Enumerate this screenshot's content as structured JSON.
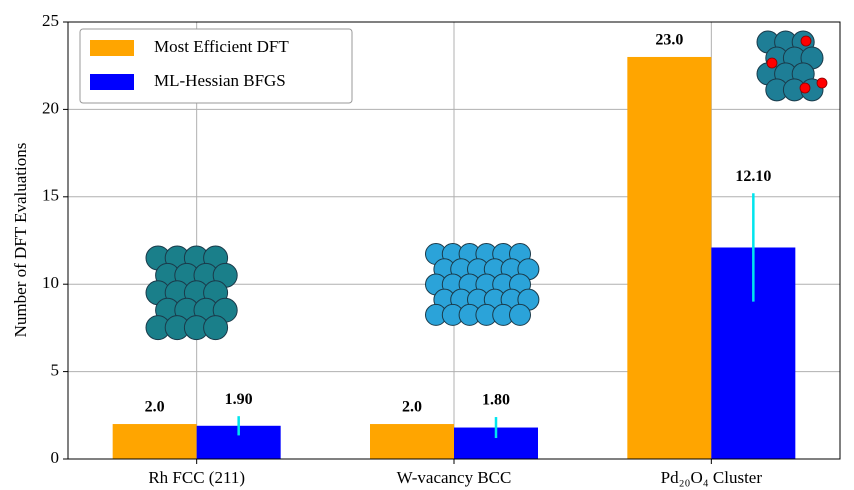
{
  "chart_data": {
    "type": "bar",
    "y_label": "Number of DFT Evaluations",
    "categories": [
      "Rh FCC (211)",
      "W-vacancy BCC",
      "Pd₂₀O₄  Cluster"
    ],
    "series": [
      {
        "name": "Most Efficient DFT",
        "color": "#ffa500",
        "values": [
          2,
          2,
          23
        ],
        "value_labels": [
          "2.0",
          "2.0",
          "23.0"
        ]
      },
      {
        "name": "ML-Hessian BFGS",
        "color": "#0000ff",
        "values": [
          1.9,
          1.8,
          12.1
        ],
        "value_labels": [
          "1.90",
          "1.80",
          "12.10"
        ],
        "errors": [
          0.55,
          0.6,
          3.1
        ],
        "error_color": "#00e5ee"
      }
    ],
    "ylim": [
      0,
      25
    ],
    "yticks": [
      0,
      5,
      10,
      15,
      20,
      25
    ],
    "grid": true,
    "legend": "upper left"
  }
}
